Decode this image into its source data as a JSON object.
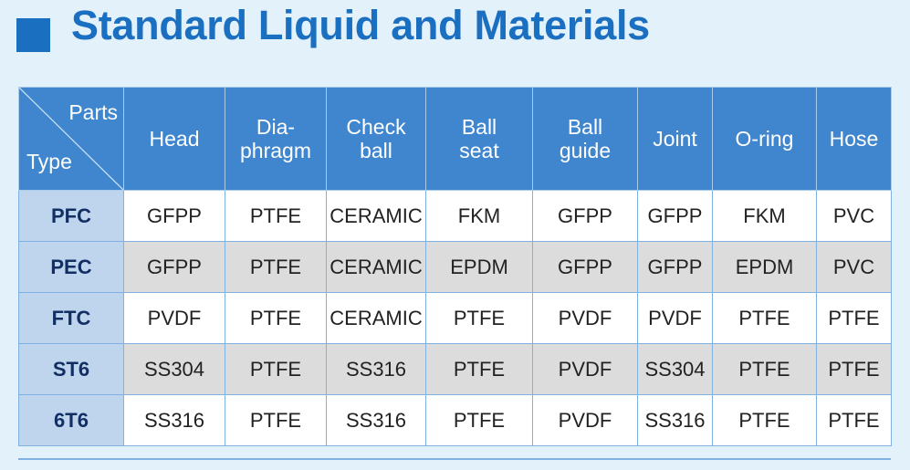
{
  "header": {
    "title": "Standard Liquid and Materials"
  },
  "table": {
    "corner": {
      "parts_label": "Parts",
      "type_label": "Type"
    },
    "columns": [
      {
        "line1": "Head",
        "line2": ""
      },
      {
        "line1": "Dia-",
        "line2": "phragm"
      },
      {
        "line1": "Check",
        "line2": "ball"
      },
      {
        "line1": "Ball",
        "line2": "seat"
      },
      {
        "line1": "Ball",
        "line2": "guide"
      },
      {
        "line1": "Joint",
        "line2": ""
      },
      {
        "line1": "O-ring",
        "line2": ""
      },
      {
        "line1": "Hose",
        "line2": ""
      }
    ],
    "rows": [
      {
        "type": "PFC",
        "cells": [
          "GFPP",
          "PTFE",
          "CERAMIC",
          "FKM",
          "GFPP",
          "GFPP",
          "FKM",
          "PVC"
        ]
      },
      {
        "type": "PEC",
        "cells": [
          "GFPP",
          "PTFE",
          "CERAMIC",
          "EPDM",
          "GFPP",
          "GFPP",
          "EPDM",
          "PVC"
        ]
      },
      {
        "type": "FTC",
        "cells": [
          "PVDF",
          "PTFE",
          "CERAMIC",
          "PTFE",
          "PVDF",
          "PVDF",
          "PTFE",
          "PTFE"
        ]
      },
      {
        "type": "ST6",
        "cells": [
          "SS304",
          "PTFE",
          "SS316",
          "PTFE",
          "PVDF",
          "SS304",
          "PTFE",
          "PTFE"
        ]
      },
      {
        "type": "6T6",
        "cells": [
          "SS316",
          "PTFE",
          "SS316",
          "PTFE",
          "PVDF",
          "SS316",
          "PTFE",
          "PTFE"
        ]
      }
    ]
  },
  "colors": {
    "title": "#1a6fc1",
    "header_bg": "#3f86cf",
    "type_col_bg": "#bfd5ee",
    "page_bg": "#e3f1fb"
  }
}
